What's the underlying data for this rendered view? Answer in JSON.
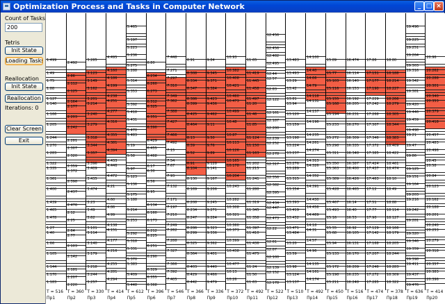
{
  "window": {
    "title": "Optimization Process and Tasks in Computer Network"
  },
  "sidebar": {
    "count_label": "Count of Tasks",
    "count_value": "200",
    "tetris_label": "Tetris",
    "init_state_label": "Init State",
    "loading_tasks_label": "Loading Tasks",
    "reallocation_label": "Reallocation",
    "init_state2_label": "Init State",
    "reallocation_button_label": "Reallocation",
    "iterations_label": "Iterations: 0",
    "clear_screen_label": "Clear Screen",
    "exit_label": "Exit"
  },
  "colors": {
    "highlight": "#f35e45",
    "title": "#0a46d5"
  },
  "processors": [
    {
      "name": "Пр1",
      "time": "T = 516",
      "top_label": "1.499",
      "hot_range": [
        0,
        0
      ]
    },
    {
      "name": "Пр2",
      "time": "T = 360",
      "top_label": "2.492",
      "hot_range": [
        2,
        16
      ]
    },
    {
      "name": "Пр3",
      "time": "T = 330",
      "top_label": "3.285",
      "hot_range": [
        2,
        24
      ]
    },
    {
      "name": "Пр4",
      "time": "T = 414",
      "top_label": "4.495",
      "hot_range": [
        2,
        22
      ]
    },
    {
      "name": "Пр5",
      "time": "T = 612",
      "top_label": "5.465",
      "hot_range": [
        0,
        0
      ]
    },
    {
      "name": "Пр6",
      "time": "T = 396",
      "top_label": "6.80",
      "hot_range": [
        2,
        18
      ]
    },
    {
      "name": "Пр7",
      "time": "T = 546",
      "top_label": "7.448",
      "hot_range": [
        5,
        20
      ]
    },
    {
      "name": "Пр8",
      "time": "T = 366",
      "top_label": "8.91",
      "hot_range": [
        2,
        26
      ]
    },
    {
      "name": "Пр9",
      "time": "T = 336",
      "top_label": "9.84",
      "hot_range": [
        2,
        24
      ]
    },
    {
      "name": "Пр10",
      "time": "T = 372",
      "top_label": "10.93",
      "hot_range": [
        2,
        28
      ]
    },
    {
      "name": "Пр11",
      "time": "T = 492",
      "top_label": "11.65",
      "hot_range": [
        2,
        22
      ]
    },
    {
      "name": "Пр12",
      "time": "T = 522",
      "top_label": "12.456",
      "hot_range": [
        0,
        0
      ]
    },
    {
      "name": "Пр13",
      "time": "T = 510",
      "top_label": "13.483",
      "hot_range": [
        0,
        0
      ]
    },
    {
      "name": "Пр14",
      "time": "T = 492",
      "top_label": "14.100",
      "hot_range": [
        2,
        10
      ]
    },
    {
      "name": "Пр15",
      "time": "T = 450",
      "top_label": "15.89",
      "hot_range": [
        2,
        12
      ]
    },
    {
      "name": "Пр16",
      "time": "T = 516",
      "top_label": "16.474",
      "hot_range": [
        0,
        0
      ]
    },
    {
      "name": "Пр17",
      "time": "T = 474",
      "top_label": "17.86",
      "hot_range": [
        2,
        8
      ]
    },
    {
      "name": "Пр18",
      "time": "T = 378",
      "top_label": "18.80",
      "hot_range": [
        2,
        20
      ]
    },
    {
      "name": "Пр19",
      "time": "T = 636",
      "top_label": "19.496",
      "hot_range": [
        0,
        0
      ]
    },
    {
      "name": "Пр20",
      "time": "T = 414",
      "top_label": "20.96",
      "hot_range": [
        2,
        16
      ]
    }
  ]
}
